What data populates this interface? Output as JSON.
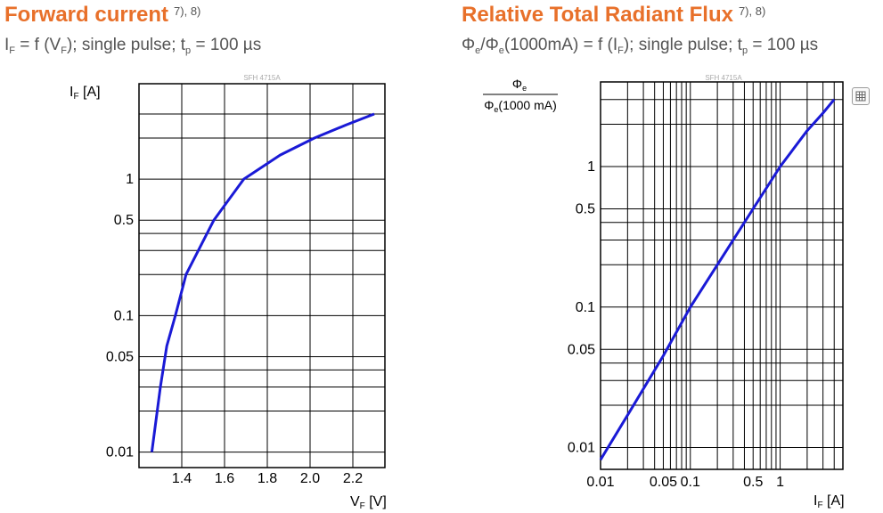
{
  "left": {
    "title": "Forward current",
    "note": "7), 8)",
    "subtitle_parts": [
      "I",
      "F",
      " = f (V",
      "F",
      "); single pulse; t",
      "p",
      " = 100 µs"
    ]
  },
  "right": {
    "title": "Relative Total Radiant Flux",
    "note": "7), 8)",
    "subtitle_parts": [
      "Φ",
      "e",
      "/Φ",
      "e",
      "(1000mA) = f (I",
      "F",
      "); single pulse; t",
      "p",
      " = 100 µs"
    ]
  },
  "icons": {
    "zoom": "zoom-icon"
  },
  "colors": {
    "accent": "#e8702a",
    "curve": "#1a1ad6",
    "grid": "#000000",
    "text": "#555555"
  },
  "chart_data": [
    {
      "type": "line",
      "title": "Forward current",
      "watermark": "SFH 4715A",
      "xlabel": "VF [V]",
      "ylabel": "IF [A]",
      "xscale": "linear",
      "yscale": "log",
      "xlim": [
        1.2,
        2.35
      ],
      "ylim": [
        0.0077,
        5.0
      ],
      "xticks": [
        1.4,
        1.6,
        1.8,
        2.0,
        2.2
      ],
      "xtick_labels": [
        "1.4",
        "1.6",
        "1.8",
        "2.0",
        "2.2"
      ],
      "yticks": [
        0.01,
        0.05,
        0.1,
        0.5,
        1
      ],
      "ytick_labels": [
        "0.01",
        "0.05",
        "0.1",
        "0.5",
        "1"
      ],
      "grid": true,
      "series": [
        {
          "name": "IF",
          "x": [
            1.26,
            1.3,
            1.33,
            1.37,
            1.42,
            1.55,
            1.69,
            1.86,
            2.02,
            2.17,
            2.3
          ],
          "y": [
            0.01,
            0.03,
            0.06,
            0.1,
            0.2,
            0.5,
            1.0,
            1.5,
            2.0,
            2.5,
            3.0
          ]
        }
      ]
    },
    {
      "type": "line",
      "title": "Relative Total Radiant Flux",
      "watermark": "SFH 4715A",
      "xlabel": "IF [A]",
      "ylabel_num": "Φe",
      "ylabel_den": "Φe(1000 mA)",
      "xscale": "log",
      "yscale": "log",
      "xlim": [
        0.01,
        5.0
      ],
      "ylim": [
        0.007,
        4.0
      ],
      "xticks": [
        0.01,
        0.05,
        0.1,
        0.5,
        1
      ],
      "xtick_labels": [
        "0.01",
        "0.05",
        "0.1",
        "0.5",
        "1"
      ],
      "yticks": [
        0.01,
        0.05,
        0.1,
        0.5,
        1
      ],
      "ytick_labels": [
        "0.01",
        "0.05",
        "0.1",
        "0.5",
        "1"
      ],
      "grid": true,
      "series": [
        {
          "name": "Φe/Φe(1000mA)",
          "x": [
            0.01,
            0.02,
            0.05,
            0.1,
            0.2,
            0.5,
            1.0,
            2.0,
            3.0,
            4.0
          ],
          "y": [
            0.0082,
            0.017,
            0.045,
            0.1,
            0.2,
            0.5,
            1.0,
            1.8,
            2.4,
            3.0
          ]
        }
      ]
    }
  ]
}
